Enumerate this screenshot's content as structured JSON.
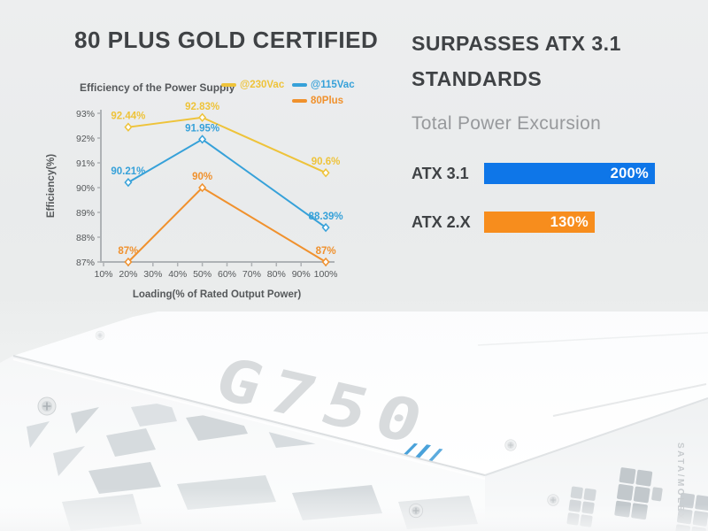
{
  "left_section": {
    "heading": "80 PLUS GOLD CERTIFIED"
  },
  "right_section": {
    "heading_line1": "SURPASSES ATX 3.1",
    "heading_line2": "STANDARDS",
    "subtitle": "Total Power Excursion"
  },
  "chart_data": [
    {
      "type": "line",
      "title": "Efficiency of the Power Supply",
      "xlabel": "Loading(% of Rated Output Power)",
      "ylabel": "Efficiency(%)",
      "x_ticks": [
        "10%",
        "20%",
        "30%",
        "40%",
        "50%",
        "60%",
        "70%",
        "80%",
        "90%",
        "100%"
      ],
      "y_ticks": [
        "93%",
        "92%",
        "91%",
        "90%",
        "89%",
        "88%",
        "87%"
      ],
      "xlim": [
        10,
        100
      ],
      "ylim": [
        87,
        93
      ],
      "grid": false,
      "legend_position": "top-right",
      "x": [
        20,
        50,
        100
      ],
      "series": [
        {
          "name": "@230Vac",
          "color": "#eec33a",
          "values": [
            92.44,
            92.83,
            90.6
          ],
          "labels": [
            "92.44%",
            "92.83%",
            "90.6%"
          ]
        },
        {
          "name": "@115Vac",
          "color": "#36a1d9",
          "values": [
            90.21,
            91.95,
            88.39
          ],
          "labels": [
            "90.21%",
            "91.95%",
            "88.39%"
          ]
        },
        {
          "name": "80Plus",
          "color": "#f0912d",
          "values": [
            87,
            90,
            87
          ],
          "labels": [
            "87%",
            "90%",
            "87%"
          ]
        }
      ]
    },
    {
      "type": "bar",
      "orientation": "horizontal",
      "title": "Total Power Excursion",
      "categories": [
        "ATX 3.1",
        "ATX 2.X"
      ],
      "values": [
        200,
        130
      ],
      "value_labels": [
        "200%",
        "130%"
      ],
      "colors": [
        "#0e76e8",
        "#f78d1d"
      ],
      "xlim": [
        0,
        200
      ]
    }
  ],
  "product_photo": {
    "model_logo": "G750",
    "side_label": "SATA/MOLEX",
    "logo_color": "#d8dbdd",
    "accent_logo": "triple-stripe-icon",
    "accent_color": "#4aa2da"
  }
}
